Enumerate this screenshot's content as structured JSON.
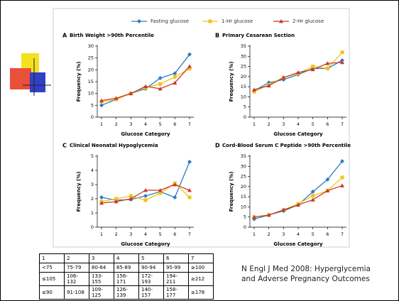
{
  "chart_data": [
    {
      "type": "line",
      "label": "A",
      "title": "Birth Weight >90th Percentile",
      "x_label": "Glucose Category",
      "y_label": "Frequency (%)",
      "categories": [
        "1",
        "2",
        "3",
        "4",
        "5",
        "6",
        "7"
      ],
      "ylim": [
        0,
        30
      ],
      "yticks": [
        0,
        5,
        10,
        15,
        20,
        25,
        30
      ],
      "series": [
        {
          "name": "Fasting glucose",
          "color": "#2b7cc2",
          "values": [
            5,
            7.5,
            10,
            12,
            16.5,
            18.5,
            26.5
          ]
        },
        {
          "name": "1-Hr glucose",
          "color": "#f2c318",
          "values": [
            6.5,
            7.5,
            10,
            12.5,
            14,
            17,
            20.5
          ]
        },
        {
          "name": "2-Hr glucose",
          "color": "#c63b2b",
          "values": [
            7,
            8,
            10,
            13,
            12,
            14.5,
            21.5
          ]
        }
      ]
    },
    {
      "type": "line",
      "label": "B",
      "title": "Primary Cesarean Section",
      "x_label": "Glucose Category",
      "y_label": "Frequency (%)",
      "categories": [
        "1",
        "2",
        "3",
        "4",
        "5",
        "6",
        "7"
      ],
      "ylim": [
        0,
        35
      ],
      "yticks": [
        0,
        5,
        10,
        15,
        20,
        25,
        30,
        35
      ],
      "series": [
        {
          "values": [
            13,
            17,
            18.5,
            21,
            24,
            24,
            28
          ]
        },
        {
          "values": [
            12.5,
            16,
            19.5,
            21.5,
            25,
            24,
            32
          ]
        },
        {
          "values": [
            13.5,
            15.5,
            19.5,
            22,
            23.5,
            26.5,
            27
          ]
        }
      ]
    },
    {
      "type": "line",
      "label": "C",
      "title": "Clinical Neonatal Hypoglycemia",
      "x_label": "Glucose Category",
      "y_label": "Frequency (%)",
      "categories": [
        "1",
        "2",
        "3",
        "4",
        "5",
        "6",
        "7"
      ],
      "ylim": [
        0,
        5
      ],
      "yticks": [
        0,
        1,
        2,
        3,
        4,
        5
      ],
      "series": [
        {
          "values": [
            2.1,
            1.9,
            1.95,
            2.2,
            2.5,
            2.1,
            4.6
          ]
        },
        {
          "values": [
            1.8,
            2.0,
            2.2,
            1.9,
            2.4,
            3.1,
            2.1
          ]
        },
        {
          "values": [
            1.7,
            1.8,
            2.0,
            2.6,
            2.6,
            3.0,
            2.6
          ]
        }
      ]
    },
    {
      "type": "line",
      "label": "D",
      "title": "Cord-Blood Serum C Peptide >90th Percentile",
      "x_label": "Glucose Category",
      "y_label": "Frequency (%)",
      "categories": [
        "1",
        "2",
        "3",
        "4",
        "5",
        "6",
        "7"
      ],
      "ylim": [
        0,
        35
      ],
      "yticks": [
        0,
        5,
        10,
        15,
        20,
        25,
        30,
        35
      ],
      "series": [
        {
          "values": [
            4,
            6,
            8,
            11,
            17.5,
            23.5,
            32.5
          ]
        },
        {
          "values": [
            5,
            6,
            8.5,
            11.5,
            15.5,
            18,
            24.5
          ]
        },
        {
          "values": [
            5,
            6,
            8.5,
            11,
            13.5,
            18,
            20.5
          ]
        }
      ]
    }
  ],
  "table": {
    "rows": [
      [
        "1",
        "2",
        "3",
        "4",
        "5",
        "6",
        "7"
      ],
      [
        "<75",
        "75-79",
        "80-84",
        "85-89",
        "90-94",
        "95-99",
        "≥100"
      ],
      [
        "≤105",
        "106-132",
        "133-155",
        "156-171",
        "172-193",
        "194-211",
        "≥212"
      ],
      [
        "≤90",
        "91-108",
        "109-125",
        "126-139",
        "140-157",
        "158-177",
        "≥178"
      ]
    ]
  },
  "citation": [
    "N Engl J Med 2008:  Hyperglycemia",
    "and Adverse Pregnancy Outcomes"
  ]
}
